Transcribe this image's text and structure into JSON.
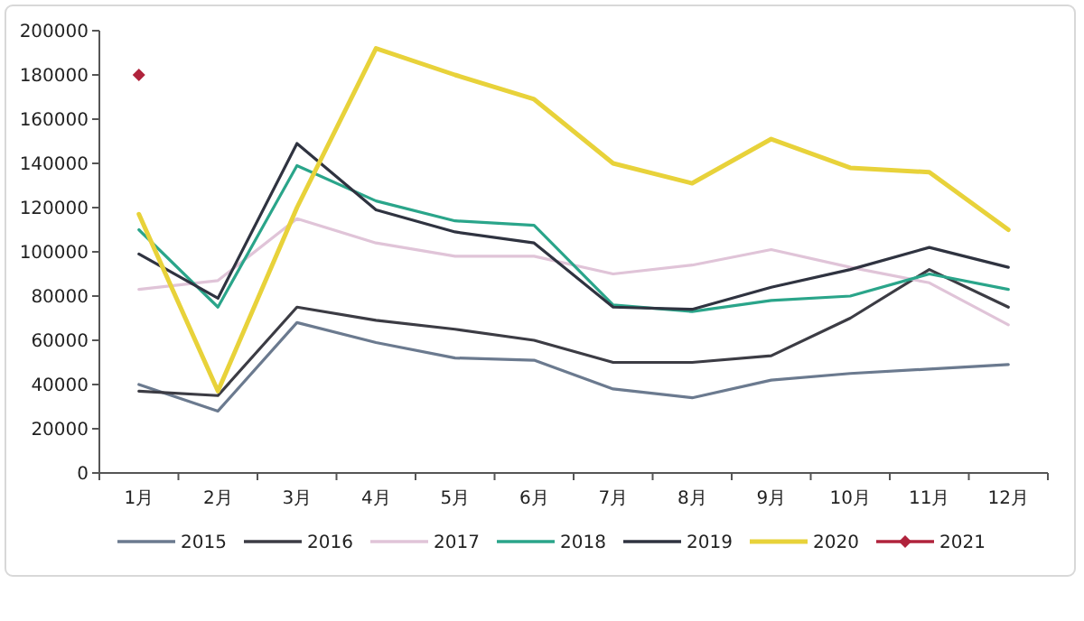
{
  "chart_data": {
    "type": "line",
    "categories": [
      "1月",
      "2月",
      "3月",
      "4月",
      "5月",
      "6月",
      "7月",
      "8月",
      "9月",
      "10月",
      "11月",
      "12月"
    ],
    "ylim": [
      0,
      200000
    ],
    "yticks": [
      0,
      20000,
      40000,
      60000,
      80000,
      100000,
      120000,
      140000,
      160000,
      180000,
      200000
    ],
    "legend": "bottom",
    "marker": "none",
    "line_style": "solid",
    "series": [
      {
        "name": "2015",
        "color": "#6b7a8f",
        "values": [
          40000,
          28000,
          68000,
          59000,
          52000,
          51000,
          38000,
          34000,
          42000,
          45000,
          47000,
          49000
        ]
      },
      {
        "name": "2016",
        "color": "#3c3c44",
        "values": [
          37000,
          35000,
          75000,
          69000,
          65000,
          60000,
          50000,
          50000,
          53000,
          70000,
          92000,
          75000
        ]
      },
      {
        "name": "2017",
        "color": "#e0c4d8",
        "values": [
          83000,
          87000,
          115000,
          104000,
          98000,
          98000,
          90000,
          94000,
          101000,
          93000,
          86000,
          67000
        ]
      },
      {
        "name": "2018",
        "color": "#2aa58a",
        "values": [
          110000,
          75000,
          139000,
          123000,
          114000,
          112000,
          76000,
          73000,
          78000,
          80000,
          90000,
          83000
        ]
      },
      {
        "name": "2019",
        "color": "#2f3340",
        "values": [
          99000,
          79000,
          149000,
          119000,
          109000,
          104000,
          75000,
          74000,
          84000,
          92000,
          102000,
          93000
        ]
      },
      {
        "name": "2020",
        "color": "#e8d23a",
        "values": [
          117000,
          37000,
          120000,
          192000,
          180000,
          169000,
          140000,
          131000,
          151000,
          138000,
          136000,
          110000
        ]
      },
      {
        "name": "2021",
        "color": "#b0233c",
        "marker": "diamond",
        "values": [
          180000,
          null,
          null,
          null,
          null,
          null,
          null,
          null,
          null,
          null,
          null,
          null
        ]
      }
    ]
  }
}
